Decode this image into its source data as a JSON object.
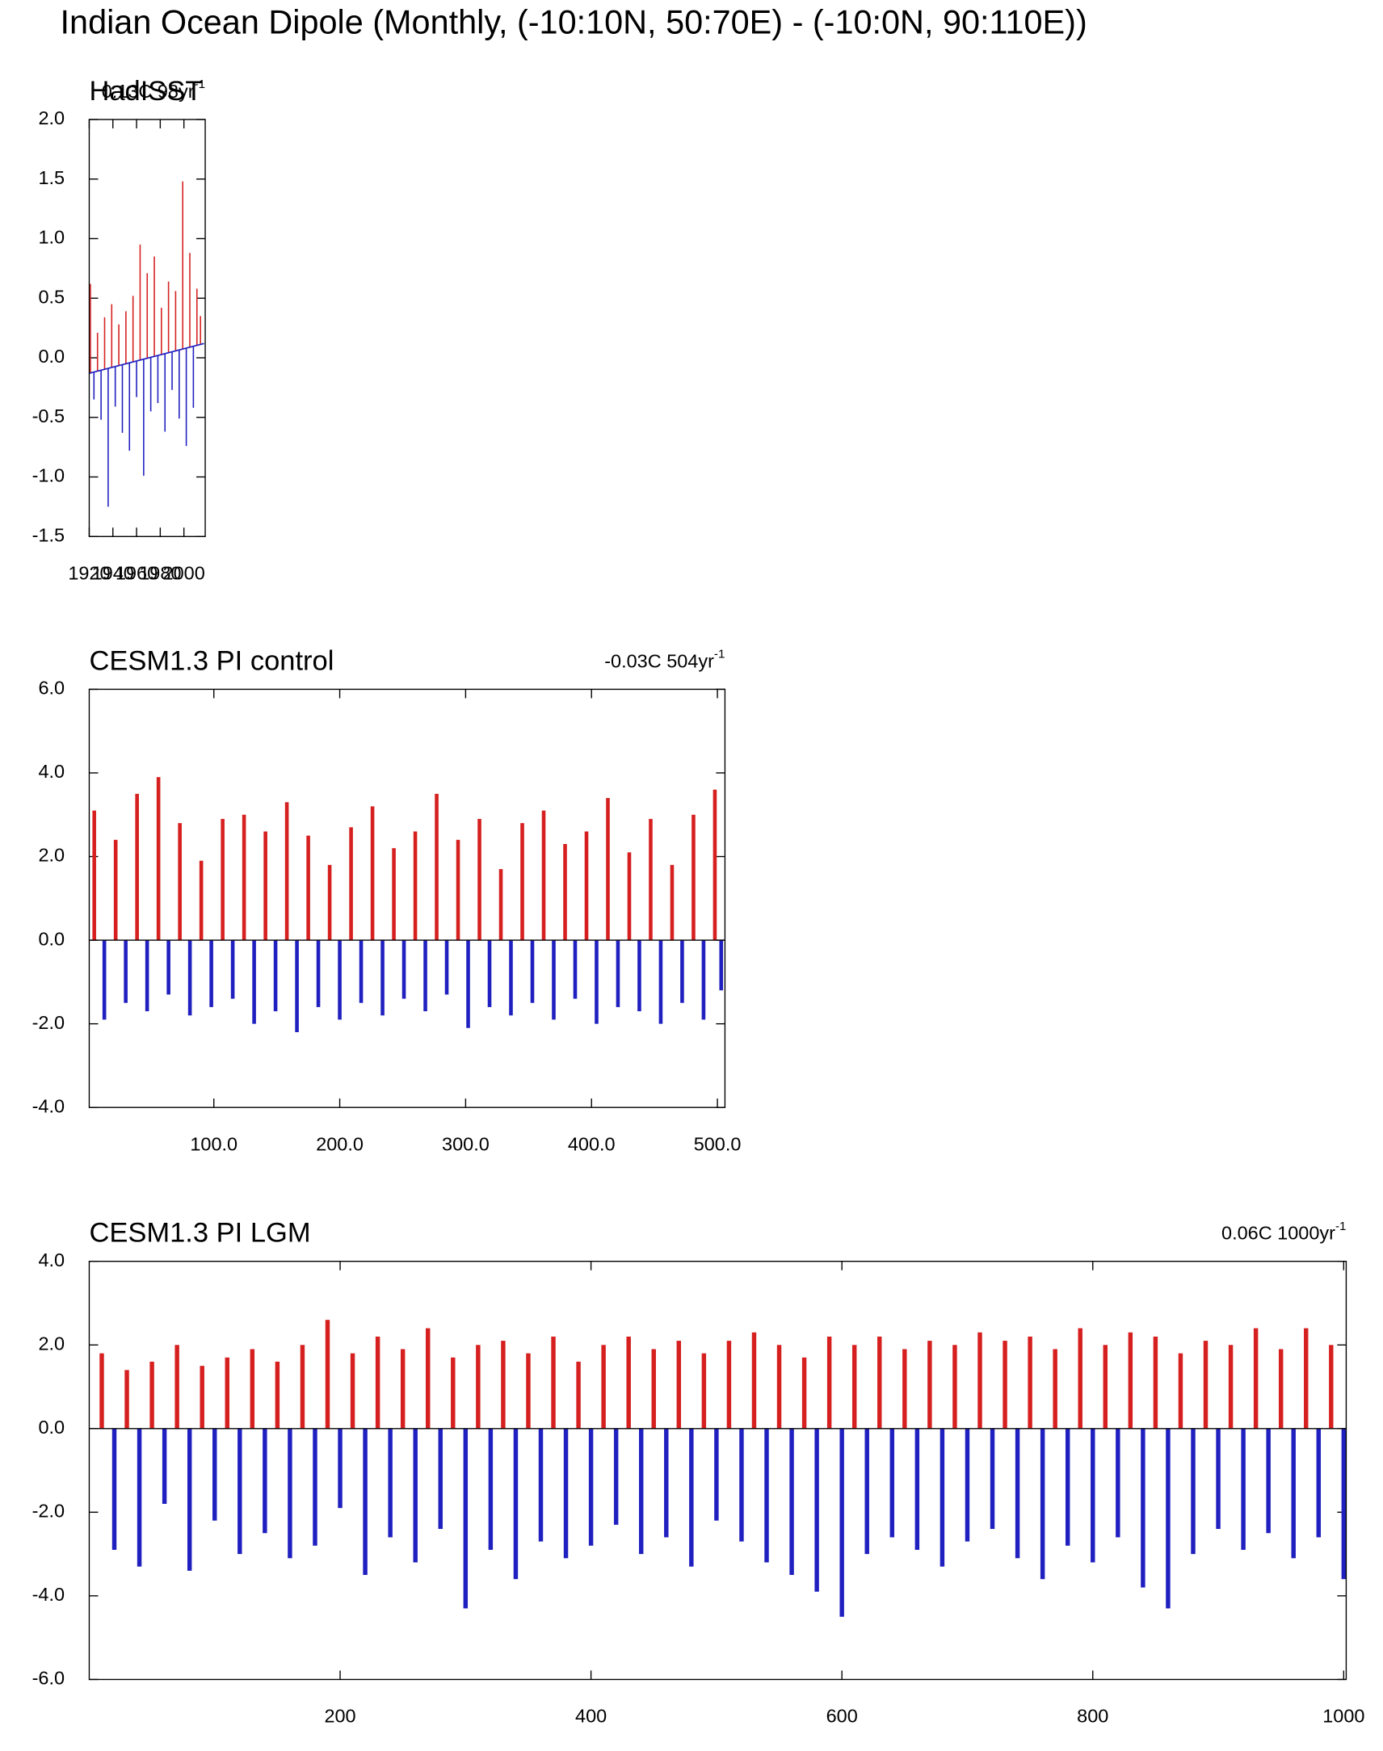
{
  "title": "Indian Ocean Dipole (Monthly, (-10:10N, 50:70E) - (-10:0N, 90:110E))",
  "chart_data": [
    {
      "type": "bar",
      "title": "HadISST",
      "annotation": {
        "text": "0.13C 98yr",
        "sup": "-1"
      },
      "x": [
        1921,
        1924,
        1927,
        1930,
        1933,
        1936,
        1939,
        1942,
        1945,
        1948,
        1951,
        1954,
        1957,
        1960,
        1963,
        1966,
        1969,
        1972,
        1975,
        1978,
        1981,
        1984,
        1987,
        1990,
        1993,
        1996,
        1999,
        2002,
        2005,
        2008,
        2011,
        2014
      ],
      "values": [
        0.62,
        -0.35,
        0.21,
        -0.52,
        0.34,
        -1.25,
        0.45,
        -0.41,
        0.28,
        -0.63,
        0.39,
        -0.78,
        0.52,
        -0.33,
        0.95,
        -0.99,
        0.71,
        -0.45,
        0.85,
        -0.38,
        0.42,
        -0.62,
        0.64,
        -0.27,
        0.56,
        -0.51,
        1.48,
        -0.74,
        0.88,
        -0.42,
        0.58,
        0.35
      ],
      "trend": {
        "x": [
          1920,
          2017
        ],
        "values": [
          -0.13,
          0.12
        ]
      },
      "pos_color": "#d62020",
      "neg_color": "#2020c0",
      "xlim": [
        1920,
        2018
      ],
      "xticks": [
        1920,
        1940,
        1960,
        1980,
        2000
      ],
      "ylim": [
        -1.5,
        2.0
      ],
      "yticks": [
        {
          "value": -1.5,
          "label": "-1.5"
        },
        {
          "value": -1,
          "label": "-1.0"
        },
        {
          "value": -0.5,
          "label": "-0.5"
        },
        {
          "value": 0,
          "label": "0.0"
        },
        {
          "value": 0.5,
          "label": "0.5"
        },
        {
          "value": 1,
          "label": "1.0"
        },
        {
          "value": 1.5,
          "label": "1.5"
        },
        {
          "value": 2,
          "label": "2.0"
        }
      ]
    },
    {
      "type": "bar",
      "title": "CESM1.3 PI control",
      "annotation": {
        "text": "-0.03C 504yr",
        "sup": "-1"
      },
      "x": [
        5,
        13,
        22,
        30,
        39,
        47,
        56,
        64,
        73,
        81,
        90,
        98,
        107,
        115,
        124,
        132,
        141,
        149,
        158,
        166,
        175,
        183,
        192,
        200,
        209,
        217,
        226,
        234,
        243,
        251,
        260,
        268,
        277,
        285,
        294,
        302,
        311,
        319,
        328,
        336,
        345,
        353,
        362,
        370,
        379,
        387,
        396,
        404,
        413,
        421,
        430,
        438,
        447,
        455,
        464,
        472,
        481,
        489,
        498,
        503
      ],
      "values": [
        3.1,
        -1.9,
        2.4,
        -1.5,
        3.5,
        -1.7,
        3.9,
        -1.3,
        2.8,
        -1.8,
        1.9,
        -1.6,
        2.9,
        -1.4,
        3.0,
        -2.0,
        2.6,
        -1.7,
        3.3,
        -2.2,
        2.5,
        -1.6,
        1.8,
        -1.9,
        2.7,
        -1.5,
        3.2,
        -1.8,
        2.2,
        -1.4,
        2.6,
        -1.7,
        3.5,
        -1.3,
        2.4,
        -2.1,
        2.9,
        -1.6,
        1.7,
        -1.8,
        2.8,
        -1.5,
        3.1,
        -1.9,
        2.3,
        -1.4,
        2.6,
        -2.0,
        3.4,
        -1.6,
        2.1,
        -1.7,
        2.9,
        -2.0,
        1.8,
        -1.5,
        3.0,
        -1.9,
        3.6,
        -1.2
      ],
      "pos_color": "#d62020",
      "neg_color": "#2020c0",
      "xlim": [
        1,
        506
      ],
      "xticks": [
        {
          "value": 100,
          "label": "100.0"
        },
        {
          "value": 200,
          "label": "200.0"
        },
        {
          "value": 300,
          "label": "300.0"
        },
        {
          "value": 400,
          "label": "400.0"
        },
        {
          "value": 500,
          "label": "500.0"
        }
      ],
      "ylim": [
        -4,
        6
      ],
      "yticks": [
        {
          "value": -4,
          "label": "-4.0"
        },
        {
          "value": -2,
          "label": "-2.0"
        },
        {
          "value": 0,
          "label": "0.0"
        },
        {
          "value": 2,
          "label": "2.0"
        },
        {
          "value": 4,
          "label": "4.0"
        },
        {
          "value": 6,
          "label": "6.0"
        }
      ]
    },
    {
      "type": "bar",
      "title": "CESM1.3 PI LGM",
      "annotation": {
        "text": "0.06C 1000yr",
        "sup": "-1"
      },
      "x": [
        10,
        20,
        30,
        40,
        50,
        60,
        70,
        80,
        90,
        100,
        110,
        120,
        130,
        140,
        150,
        160,
        170,
        180,
        190,
        200,
        210,
        220,
        230,
        240,
        250,
        260,
        270,
        280,
        290,
        300,
        310,
        320,
        330,
        340,
        350,
        360,
        370,
        380,
        390,
        400,
        410,
        420,
        430,
        440,
        450,
        460,
        470,
        480,
        490,
        500,
        510,
        520,
        530,
        540,
        550,
        560,
        570,
        580,
        590,
        600,
        610,
        620,
        630,
        640,
        650,
        660,
        670,
        680,
        690,
        700,
        710,
        720,
        730,
        740,
        750,
        760,
        770,
        780,
        790,
        800,
        810,
        820,
        830,
        840,
        850,
        860,
        870,
        880,
        890,
        900,
        910,
        920,
        930,
        940,
        950,
        960,
        970,
        980,
        990,
        1000
      ],
      "values": [
        1.8,
        -2.9,
        1.4,
        -3.3,
        1.6,
        -1.8,
        2.0,
        -3.4,
        1.5,
        -2.2,
        1.7,
        -3.0,
        1.9,
        -2.5,
        1.6,
        -3.1,
        2.0,
        -2.8,
        2.6,
        -1.9,
        1.8,
        -3.5,
        2.2,
        -2.6,
        1.9,
        -3.2,
        2.4,
        -2.4,
        1.7,
        -4.3,
        2.0,
        -2.9,
        2.1,
        -3.6,
        1.8,
        -2.7,
        2.2,
        -3.1,
        1.6,
        -2.8,
        2.0,
        -2.3,
        2.2,
        -3.0,
        1.9,
        -2.6,
        2.1,
        -3.3,
        1.8,
        -2.2,
        2.1,
        -2.7,
        2.3,
        -3.2,
        2.0,
        -3.5,
        1.7,
        -3.9,
        2.2,
        -4.5,
        2.0,
        -3.0,
        2.2,
        -2.6,
        1.9,
        -2.9,
        2.1,
        -3.3,
        2.0,
        -2.7,
        2.3,
        -2.4,
        2.1,
        -3.1,
        2.2,
        -3.6,
        1.9,
        -2.8,
        2.4,
        -3.2,
        2.0,
        -2.6,
        2.3,
        -3.8,
        2.2,
        -4.3,
        1.8,
        -3.0,
        2.1,
        -2.4,
        2.0,
        -2.9,
        2.4,
        -2.5,
        1.9,
        -3.1,
        2.4,
        -2.6,
        2.0,
        -3.6
      ],
      "pos_color": "#d62020",
      "neg_color": "#2020c0",
      "xlim": [
        0,
        1002
      ],
      "xticks": [
        200,
        400,
        600,
        800,
        1000
      ],
      "ylim": [
        -6,
        4
      ],
      "yticks": [
        {
          "value": -6,
          "label": "-6.0"
        },
        {
          "value": -4,
          "label": "-4.0"
        },
        {
          "value": -2,
          "label": "-2.0"
        },
        {
          "value": 0,
          "label": "0.0"
        },
        {
          "value": 2,
          "label": "2.0"
        },
        {
          "value": 4,
          "label": "4.0"
        }
      ]
    }
  ]
}
